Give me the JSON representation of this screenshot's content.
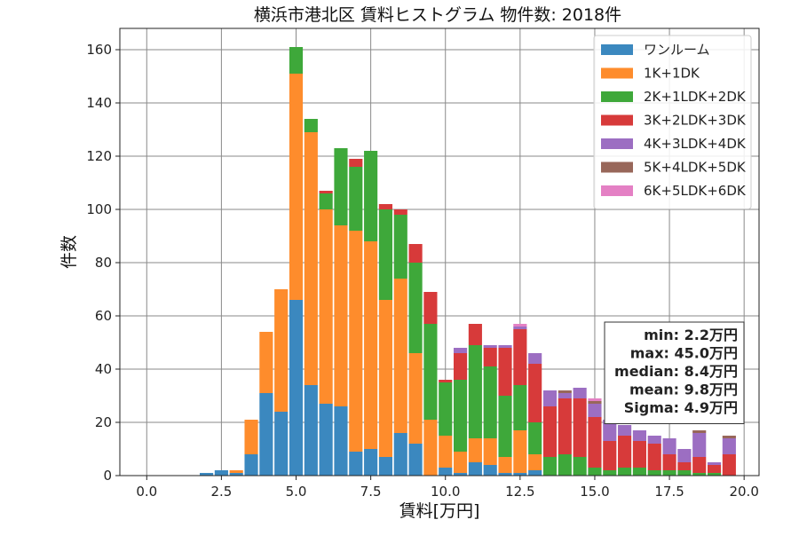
{
  "chart_data": {
    "type": "bar",
    "stacked": true,
    "title": "横浜市港北区 賃料ヒストグラム 物件数: 2018件",
    "xlabel": "賃料[万円]",
    "ylabel": "件数",
    "xlim": [
      -0.9,
      20.5
    ],
    "ylim": [
      0,
      168
    ],
    "xticks": [
      0,
      2.5,
      5,
      7.5,
      10,
      12.5,
      15,
      17.5,
      20
    ],
    "xtick_labels": [
      "0.0",
      "2.5",
      "5.0",
      "7.5",
      "10.0",
      "12.5",
      "15.0",
      "17.5",
      "20.0"
    ],
    "yticks": [
      0,
      20,
      40,
      60,
      80,
      100,
      120,
      140,
      160
    ],
    "ytick_labels": [
      "0",
      "20",
      "40",
      "60",
      "80",
      "100",
      "120",
      "140",
      "160"
    ],
    "grid": true,
    "legend_position": "top-right",
    "bin_width": 0.5,
    "bin_starts": [
      1.75,
      2.25,
      2.75,
      3.25,
      3.75,
      4.25,
      4.75,
      5.25,
      5.75,
      6.25,
      6.75,
      7.25,
      7.75,
      8.25,
      8.75,
      9.25,
      9.75,
      10.25,
      10.75,
      11.25,
      11.75,
      12.25,
      12.75,
      13.25,
      13.75,
      14.25,
      14.75,
      15.25,
      15.75,
      16.25,
      16.75,
      17.25,
      17.75,
      18.25,
      18.75,
      19.25
    ],
    "series": [
      {
        "name": "ワンルーム",
        "color": "#3b88bf",
        "values": [
          1,
          2,
          1,
          8,
          31,
          24,
          66,
          34,
          27,
          26,
          9,
          10,
          7,
          16,
          12,
          0,
          3,
          1,
          5,
          4,
          1,
          1,
          2,
          0,
          0,
          0,
          0,
          0,
          0,
          0,
          0,
          0,
          0,
          0,
          0,
          0
        ]
      },
      {
        "name": "1K+1DK",
        "color": "#fe8c2c",
        "values": [
          0,
          0,
          1,
          13,
          23,
          46,
          85,
          95,
          73,
          68,
          83,
          78,
          59,
          58,
          34,
          21,
          12,
          8,
          9,
          10,
          6,
          16,
          6,
          0,
          0,
          0,
          0,
          0,
          0,
          0,
          0,
          0,
          0,
          0,
          0,
          0
        ]
      },
      {
        "name": "2K+1LDK+2DK",
        "color": "#3ea83a",
        "values": [
          0,
          0,
          0,
          0,
          0,
          0,
          10,
          5,
          6,
          29,
          24,
          34,
          34,
          24,
          34,
          36,
          20,
          27,
          35,
          27,
          23,
          17,
          12,
          7,
          8,
          7,
          3,
          2,
          3,
          3,
          2,
          2,
          2,
          1,
          1,
          0
        ]
      },
      {
        "name": "3K+2LDK+3DK",
        "color": "#d73a3a",
        "values": [
          0,
          0,
          0,
          0,
          0,
          0,
          0,
          0,
          1,
          0,
          3,
          0,
          2,
          2,
          7,
          12,
          1,
          10,
          8,
          7,
          18,
          21,
          22,
          19,
          21,
          22,
          19,
          11,
          12,
          10,
          10,
          6,
          3,
          6,
          3,
          8
        ]
      },
      {
        "name": "4K+3LDK+4DK",
        "color": "#9c6ec2",
        "values": [
          0,
          0,
          0,
          0,
          0,
          0,
          0,
          0,
          0,
          0,
          0,
          0,
          0,
          0,
          0,
          0,
          0,
          2,
          0,
          1,
          1,
          1,
          4,
          6,
          2,
          4,
          5,
          8,
          4,
          4,
          3,
          6,
          5,
          9,
          1,
          6
        ]
      },
      {
        "name": "5K+4LDK+5DK",
        "color": "#98675a",
        "values": [
          0,
          0,
          0,
          0,
          0,
          0,
          0,
          0,
          0,
          0,
          0,
          0,
          0,
          0,
          0,
          0,
          0,
          0,
          0,
          0,
          0,
          0,
          0,
          0,
          1,
          0,
          1,
          0,
          0,
          0,
          0,
          0,
          0,
          1,
          0,
          1
        ]
      },
      {
        "name": "6K+5LDK+6DK",
        "color": "#e480c4",
        "values": [
          0,
          0,
          0,
          0,
          0,
          0,
          0,
          0,
          0,
          0,
          0,
          0,
          0,
          0,
          0,
          0,
          0,
          0,
          0,
          0,
          0,
          1,
          0,
          0,
          0,
          0,
          1,
          0,
          0,
          0,
          0,
          0,
          0,
          0,
          0,
          0
        ]
      }
    ],
    "stats": [
      "min: 2.2万円",
      "max: 45.0万円",
      "median: 8.4万円",
      "mean: 9.8万円",
      "Sigma: 4.9万円"
    ]
  }
}
